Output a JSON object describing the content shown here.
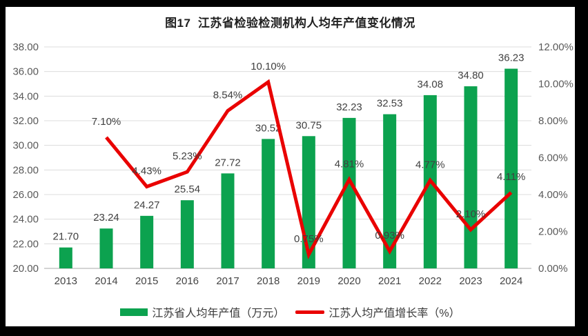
{
  "title": "图17  江苏省检验检测机构人均年产值变化情况",
  "colors": {
    "frame_bg": "#000000",
    "panel_bg": "#FFFFFF",
    "bar": "#0CA24F",
    "line": "#E90000",
    "grid": "#DCDCDC",
    "baseline": "#C6C6C6",
    "tick_text": "#595959",
    "label_text": "#404040",
    "title_text": "#1F1F1F"
  },
  "chart_data": {
    "type": "bar+line",
    "title": "图17  江苏省检验检测机构人均年产值变化情况",
    "categories": [
      "2013",
      "2014",
      "2015",
      "2016",
      "2017",
      "2018",
      "2019",
      "2020",
      "2021",
      "2022",
      "2023",
      "2024"
    ],
    "series": [
      {
        "name": "江苏省人均年产值（万元）",
        "type": "bar",
        "axis": "left",
        "color": "#0CA24F",
        "values": [
          21.7,
          23.24,
          24.27,
          25.54,
          27.72,
          30.52,
          30.75,
          32.23,
          32.53,
          34.08,
          34.8,
          36.23
        ],
        "labels": [
          "21.70",
          "23.24",
          "24.27",
          "25.54",
          "27.72",
          "30.52",
          "30.75",
          "32.23",
          "32.53",
          "34.08",
          "34.80",
          "36.23"
        ]
      },
      {
        "name": "江苏人均产值增长率（%）",
        "type": "line",
        "axis": "right",
        "color": "#E90000",
        "values": [
          null,
          7.1,
          4.43,
          5.23,
          8.54,
          10.1,
          0.75,
          4.81,
          0.93,
          4.77,
          2.1,
          4.11
        ],
        "labels": [
          null,
          "7.10%",
          "4.43%",
          "5.23%",
          "8.54%",
          "10.10%",
          "0.75%",
          "4.81%",
          "0.93%",
          "4.77%",
          "2.10%",
          "4.11%"
        ]
      }
    ],
    "left_axis": {
      "min": 20,
      "max": 38,
      "step": 2,
      "ticks": [
        "38.00",
        "36.00",
        "34.00",
        "32.00",
        "30.00",
        "28.00",
        "26.00",
        "24.00",
        "22.00",
        "20.00"
      ]
    },
    "right_axis": {
      "min": 0,
      "max": 12,
      "step": 2,
      "ticks": [
        "12.00%",
        "10.00%",
        "8.00%",
        "6.00%",
        "4.00%",
        "2.00%",
        "0.00%"
      ]
    },
    "grid": true,
    "legend_position": "bottom"
  }
}
